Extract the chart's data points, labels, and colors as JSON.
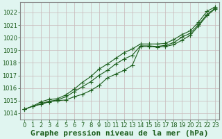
{
  "xlabel": "Graphe pression niveau de la mer (hPa)",
  "ylim": [
    1013.5,
    1022.8
  ],
  "xlim": [
    -0.5,
    23.5
  ],
  "yticks": [
    1014,
    1015,
    1016,
    1017,
    1018,
    1019,
    1020,
    1021,
    1022
  ],
  "xticks": [
    0,
    1,
    2,
    3,
    4,
    5,
    6,
    7,
    8,
    9,
    10,
    11,
    12,
    13,
    14,
    15,
    16,
    17,
    18,
    19,
    20,
    21,
    22,
    23
  ],
  "bg_color": "#e0f5f0",
  "grid_color": "#c8b8b8",
  "line_color": "#1a5c1a",
  "line1": [
    1014.3,
    1014.55,
    1014.7,
    1014.9,
    1015.0,
    1015.05,
    1015.3,
    1015.5,
    1015.8,
    1016.2,
    1016.8,
    1017.1,
    1017.4,
    1017.8,
    1019.3,
    1019.3,
    1019.25,
    1019.3,
    1019.45,
    1019.8,
    1020.2,
    1020.95,
    1021.75,
    1022.3
  ],
  "line2": [
    1014.3,
    1014.55,
    1014.75,
    1014.95,
    1015.05,
    1015.3,
    1015.7,
    1016.1,
    1016.5,
    1017.0,
    1017.4,
    1017.9,
    1018.3,
    1018.6,
    1019.35,
    1019.35,
    1019.3,
    1019.4,
    1019.6,
    1020.05,
    1020.35,
    1021.05,
    1021.85,
    1022.35
  ],
  "line3": [
    1014.3,
    1014.55,
    1014.9,
    1015.1,
    1015.15,
    1015.45,
    1015.9,
    1016.45,
    1016.9,
    1017.5,
    1017.9,
    1018.35,
    1018.8,
    1019.1,
    1019.5,
    1019.5,
    1019.5,
    1019.55,
    1019.85,
    1020.25,
    1020.55,
    1021.25,
    1022.1,
    1022.45
  ],
  "marker": "+",
  "markersize": 4.0,
  "linewidth": 0.8,
  "xlabel_fontsize": 8,
  "tick_fontsize": 6,
  "tick_color": "#1a5c1a",
  "axis_color": "#888888"
}
